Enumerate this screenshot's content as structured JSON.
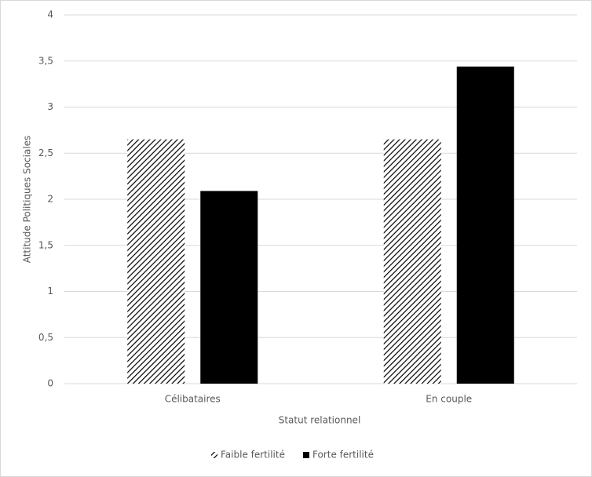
{
  "chart_data": {
    "type": "bar",
    "x_label": "Statut relationnel",
    "y_label": "Attitude Politiques Sociales",
    "categories": [
      "Célibataires",
      "En couple"
    ],
    "series": [
      {
        "name": "Faible fertilité",
        "color": "#000000",
        "pattern": "diagonal-hatch",
        "values": [
          2.65,
          2.65
        ]
      },
      {
        "name": "Forte fertilité",
        "color": "#000000",
        "values": [
          2.09,
          3.44
        ]
      }
    ],
    "ylim": [
      0,
      4
    ],
    "yticks": [
      0,
      {
        "value": 0.5,
        "label": "0,5"
      },
      1,
      {
        "value": 1.5,
        "label": "1,5"
      },
      2,
      {
        "value": 2.5,
        "label": "2,5"
      },
      3,
      {
        "value": 3.5,
        "label": "3,5"
      },
      4
    ],
    "grid": true,
    "legend": "bottom"
  }
}
